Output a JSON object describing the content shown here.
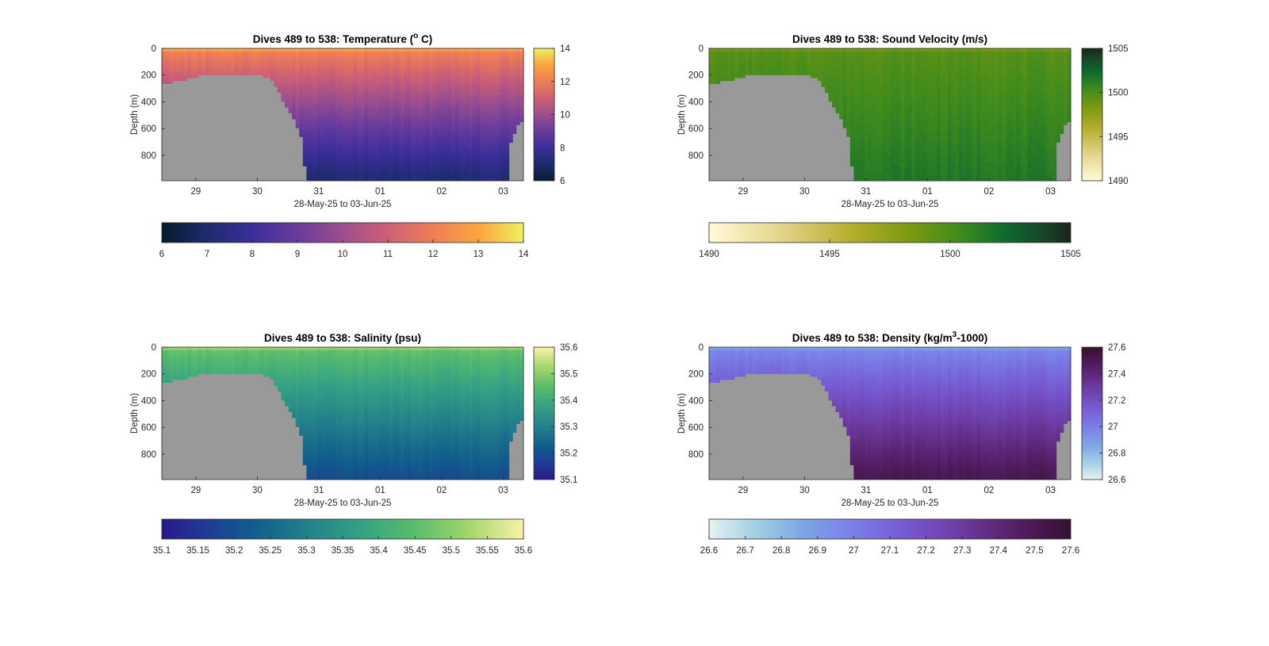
{
  "chart_data": [
    {
      "type": "heatmap",
      "title": "Dives 489 to 538: Temperature (°C)",
      "title_main": "Dives 489 to 538: Temperature (",
      "title_sup": "o",
      "title_end": " C)",
      "xlabel": "28-May-25 to 03-Jun-25",
      "ylabel": "Depth (m)",
      "x_range": [
        "2025-05-28T12:00",
        "2025-06-03T08:00"
      ],
      "x_ticks": [
        "29",
        "30",
        "31",
        "01",
        "02",
        "03"
      ],
      "ylim": [
        0,
        990
      ],
      "y_ticks": [
        0,
        200,
        400,
        600,
        800
      ],
      "variable": "temperature",
      "colormap": "thermal",
      "clim": [
        6,
        14
      ],
      "cbar_right_ticks": [
        "14",
        "12",
        "10",
        "8",
        "6"
      ],
      "cbar_bottom_ticks": [
        "6",
        "7",
        "8",
        "9",
        "10",
        "11",
        "12",
        "13",
        "14"
      ],
      "surface_value": 12.3,
      "deep_value": 7.2,
      "no_data_color": "#999999"
    },
    {
      "type": "heatmap",
      "title": "Dives 489 to 538: Sound Velocity (m/s)",
      "title_main": "Dives 489 to 538: Sound Velocity (m/s)",
      "xlabel": "28-May-25 to 03-Jun-25",
      "ylabel": "Depth (m)",
      "x_range": [
        "2025-05-28T12:00",
        "2025-06-03T08:00"
      ],
      "x_ticks": [
        "29",
        "30",
        "31",
        "01",
        "02",
        "03"
      ],
      "ylim": [
        0,
        990
      ],
      "y_ticks": [
        0,
        200,
        400,
        600,
        800
      ],
      "variable": "sound_velocity",
      "colormap": "speed",
      "clim": [
        1490,
        1505
      ],
      "cbar_right_ticks": [
        "1505",
        "1500",
        "1495",
        "1490"
      ],
      "cbar_bottom_ticks": [
        "1490",
        "1495",
        "1500",
        "1505"
      ],
      "surface_value": 1499.5,
      "deep_value": 1501.5,
      "no_data_color": "#999999"
    },
    {
      "type": "heatmap",
      "title": "Dives 489 to 538: Salinity (psu)",
      "title_main": "Dives 489 to 538: Salinity (psu)",
      "xlabel": "28-May-25 to 03-Jun-25",
      "ylabel": "Depth (m)",
      "x_range": [
        "2025-05-28T12:00",
        "2025-06-03T08:00"
      ],
      "x_ticks": [
        "29",
        "30",
        "31",
        "01",
        "02",
        "03"
      ],
      "ylim": [
        0,
        990
      ],
      "y_ticks": [
        0,
        200,
        400,
        600,
        800
      ],
      "variable": "salinity",
      "colormap": "haline",
      "clim": [
        35.1,
        35.6
      ],
      "cbar_right_ticks": [
        "35.6",
        "35.5",
        "35.4",
        "35.3",
        "35.2",
        "35.1"
      ],
      "cbar_bottom_ticks": [
        "35.1",
        "35.15",
        "35.2",
        "35.25",
        "35.3",
        "35.35",
        "35.4",
        "35.45",
        "35.5",
        "35.55",
        "35.6"
      ],
      "surface_value": 35.47,
      "deep_value": 35.2,
      "no_data_color": "#999999"
    },
    {
      "type": "heatmap",
      "title": "Dives 489 to 538: Density (kg/m³-1000)",
      "title_main": "Dives 489 to 538: Density (kg/m",
      "title_sup": "3",
      "title_end": "-1000)",
      "xlabel": "28-May-25 to 03-Jun-25",
      "ylabel": "Depth (m)",
      "x_range": [
        "2025-05-28T12:00",
        "2025-06-03T08:00"
      ],
      "x_ticks": [
        "29",
        "30",
        "31",
        "01",
        "02",
        "03"
      ],
      "ylim": [
        0,
        990
      ],
      "y_ticks": [
        0,
        200,
        400,
        600,
        800
      ],
      "variable": "density",
      "colormap": "dense",
      "clim": [
        26.6,
        27.6
      ],
      "cbar_right_ticks": [
        "27.6",
        "27.4",
        "27.2",
        "27",
        "26.8",
        "26.6"
      ],
      "cbar_bottom_ticks": [
        "26.6",
        "26.7",
        "26.8",
        "26.9",
        "27",
        "27.1",
        "27.2",
        "27.3",
        "27.4",
        "27.5",
        "27.6"
      ],
      "surface_value": 26.95,
      "deep_value": 27.5,
      "no_data_color": "#999999"
    }
  ]
}
